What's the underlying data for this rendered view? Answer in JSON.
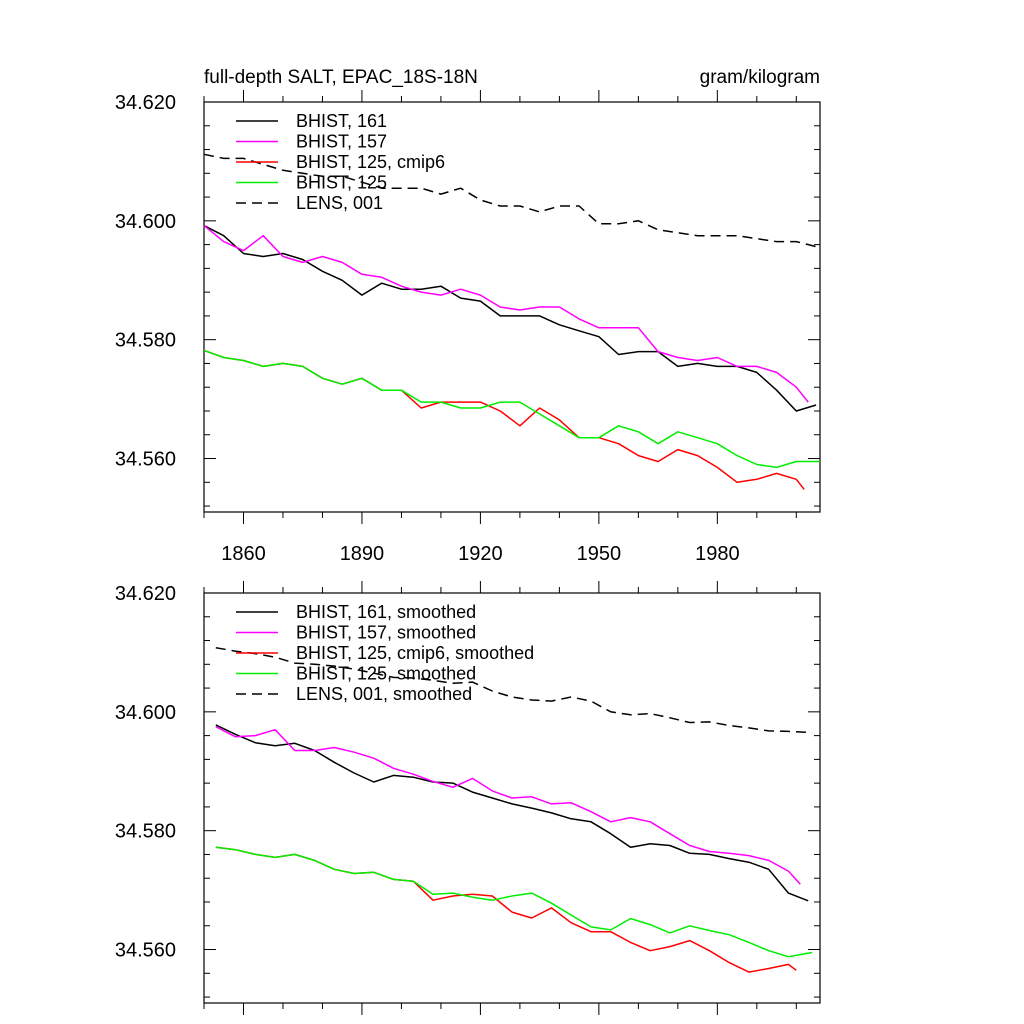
{
  "figure": {
    "title_left": "full-depth SALT, EPAC_18S-18N",
    "title_right": "gram/kilogram"
  },
  "colors": {
    "black": "#000000",
    "magenta": "#ff00ff",
    "red": "#ff0000",
    "green": "#00ee00"
  },
  "chart_data": [
    {
      "type": "line",
      "title": "full-depth SALT, EPAC_18S-18N",
      "units_label": "gram/kilogram",
      "xlim": [
        1850,
        2006
      ],
      "ylim": [
        34.551,
        34.62
      ],
      "x_ticks": [
        1860,
        1890,
        1920,
        1950,
        1980
      ],
      "x_tick_labels": [
        "1860",
        "1890",
        "1920",
        "1950",
        "1980"
      ],
      "y_ticks": [
        34.56,
        34.58,
        34.6,
        34.62
      ],
      "y_tick_labels": [
        "34.560",
        "34.580",
        "34.600",
        "34.620"
      ],
      "grid": false,
      "legend_position": "top-left",
      "series": [
        {
          "name": "BHIST, 161",
          "color": "black",
          "dash": false,
          "x": [
            1850,
            1855,
            1860,
            1865,
            1870,
            1875,
            1880,
            1885,
            1890,
            1895,
            1900,
            1905,
            1910,
            1915,
            1920,
            1925,
            1930,
            1935,
            1940,
            1945,
            1950,
            1955,
            1960,
            1965,
            1970,
            1975,
            1980,
            1985,
            1990,
            1995,
            2000,
            2005
          ],
          "y": [
            34.5992,
            34.5975,
            34.5945,
            34.594,
            34.5945,
            34.5935,
            34.5915,
            34.59,
            34.5875,
            34.5895,
            34.5885,
            34.5885,
            34.589,
            34.587,
            34.5865,
            34.584,
            34.584,
            34.584,
            34.5825,
            34.5815,
            34.5805,
            34.5775,
            34.578,
            34.578,
            34.5755,
            34.576,
            34.5755,
            34.5755,
            34.5745,
            34.5715,
            34.568,
            34.569
          ]
        },
        {
          "name": "BHIST, 157",
          "color": "magenta",
          "dash": false,
          "x": [
            1850,
            1855,
            1860,
            1865,
            1870,
            1875,
            1880,
            1885,
            1890,
            1895,
            1900,
            1905,
            1910,
            1915,
            1920,
            1925,
            1930,
            1935,
            1940,
            1945,
            1950,
            1955,
            1960,
            1965,
            1970,
            1975,
            1980,
            1985,
            1990,
            1995,
            2000,
            2003
          ],
          "y": [
            34.5992,
            34.5965,
            34.595,
            34.5975,
            34.594,
            34.593,
            34.594,
            34.593,
            34.591,
            34.5905,
            34.589,
            34.588,
            34.5875,
            34.5885,
            34.5875,
            34.5855,
            34.585,
            34.5855,
            34.5855,
            34.5835,
            34.582,
            34.582,
            34.582,
            34.578,
            34.577,
            34.5765,
            34.577,
            34.5755,
            34.5755,
            34.5745,
            34.572,
            34.5695
          ]
        },
        {
          "name": "BHIST, 125, cmip6",
          "color": "red",
          "dash": false,
          "x": [
            1850,
            1855,
            1860,
            1865,
            1870,
            1875,
            1880,
            1885,
            1890,
            1895,
            1900,
            1905,
            1910,
            1915,
            1920,
            1925,
            1930,
            1935,
            1940,
            1945,
            1950,
            1955,
            1960,
            1965,
            1970,
            1975,
            1980,
            1985,
            1990,
            1995,
            2000,
            2002
          ],
          "y": [
            34.5782,
            34.577,
            34.5765,
            34.5755,
            34.576,
            34.5755,
            34.5735,
            34.5725,
            34.5735,
            34.5715,
            34.5715,
            34.5685,
            34.5695,
            34.5695,
            34.5695,
            34.568,
            34.5655,
            34.5685,
            34.5665,
            34.5635,
            34.5635,
            34.5625,
            34.5605,
            34.5595,
            34.5615,
            34.5605,
            34.5585,
            34.556,
            34.5565,
            34.5575,
            34.5565,
            34.5548
          ]
        },
        {
          "name": "BHIST, 125",
          "color": "green",
          "dash": false,
          "x": [
            1850,
            1855,
            1860,
            1865,
            1870,
            1875,
            1880,
            1885,
            1890,
            1895,
            1900,
            1905,
            1910,
            1915,
            1920,
            1925,
            1930,
            1935,
            1940,
            1945,
            1950,
            1955,
            1960,
            1965,
            1970,
            1975,
            1980,
            1985,
            1990,
            1995,
            2000,
            2006
          ],
          "y": [
            34.5782,
            34.577,
            34.5765,
            34.5755,
            34.576,
            34.5755,
            34.5735,
            34.5725,
            34.5735,
            34.5715,
            34.5715,
            34.5695,
            34.5695,
            34.5685,
            34.5685,
            34.5695,
            34.5695,
            34.5675,
            34.5655,
            34.5635,
            34.5635,
            34.5655,
            34.5645,
            34.5625,
            34.5645,
            34.5635,
            34.5625,
            34.5605,
            34.559,
            34.5585,
            34.5595,
            34.5595
          ]
        },
        {
          "name": "LENS, 001",
          "color": "black",
          "dash": true,
          "x": [
            1850,
            1855,
            1860,
            1865,
            1870,
            1875,
            1880,
            1885,
            1890,
            1895,
            1900,
            1905,
            1910,
            1915,
            1920,
            1925,
            1930,
            1935,
            1940,
            1945,
            1950,
            1955,
            1960,
            1965,
            1970,
            1975,
            1980,
            1985,
            1990,
            1995,
            2000,
            2006
          ],
          "y": [
            34.6112,
            34.6105,
            34.6105,
            34.6095,
            34.6085,
            34.608,
            34.6075,
            34.6075,
            34.6065,
            34.6055,
            34.6055,
            34.6055,
            34.6045,
            34.6055,
            34.6035,
            34.6025,
            34.6025,
            34.6015,
            34.6025,
            34.6025,
            34.5995,
            34.5995,
            34.6,
            34.5985,
            34.598,
            34.5975,
            34.5975,
            34.5975,
            34.597,
            34.5965,
            34.5965,
            34.5955
          ]
        }
      ]
    },
    {
      "type": "line",
      "xlim": [
        1850,
        2006
      ],
      "ylim": [
        34.551,
        34.62
      ],
      "x_ticks": [
        1860,
        1890,
        1920,
        1950,
        1980
      ],
      "y_ticks": [
        34.56,
        34.58,
        34.6,
        34.62
      ],
      "y_tick_labels": [
        "34.560",
        "34.580",
        "34.600",
        "34.620"
      ],
      "grid": false,
      "legend_position": "top-left",
      "series": [
        {
          "name": "BHIST, 161, smoothed",
          "color": "black",
          "dash": false,
          "x": [
            1853,
            1858,
            1863,
            1868,
            1873,
            1878,
            1883,
            1888,
            1893,
            1898,
            1903,
            1908,
            1913,
            1918,
            1923,
            1928,
            1933,
            1938,
            1943,
            1948,
            1953,
            1958,
            1963,
            1968,
            1973,
            1978,
            1983,
            1988,
            1993,
            1998,
            2003
          ],
          "y": [
            34.5978,
            34.5962,
            34.5948,
            34.5943,
            34.5947,
            34.5935,
            34.5915,
            34.5897,
            34.5882,
            34.5893,
            34.589,
            34.5882,
            34.588,
            34.5865,
            34.5855,
            34.5845,
            34.5838,
            34.583,
            34.582,
            34.5815,
            34.5795,
            34.5772,
            34.5778,
            34.5775,
            34.5762,
            34.576,
            34.5753,
            34.5747,
            34.5735,
            34.5695,
            34.5682
          ]
        },
        {
          "name": "BHIST, 157, smoothed",
          "color": "magenta",
          "dash": false,
          "x": [
            1853,
            1858,
            1863,
            1868,
            1873,
            1878,
            1883,
            1888,
            1893,
            1898,
            1903,
            1908,
            1913,
            1918,
            1923,
            1928,
            1933,
            1938,
            1943,
            1948,
            1953,
            1958,
            1963,
            1968,
            1973,
            1978,
            1983,
            1988,
            1993,
            1998,
            2001
          ],
          "y": [
            34.5975,
            34.5958,
            34.596,
            34.597,
            34.5935,
            34.5935,
            34.594,
            34.5932,
            34.5922,
            34.5905,
            34.5895,
            34.5883,
            34.5873,
            34.5888,
            34.5867,
            34.5855,
            34.5857,
            34.5845,
            34.5847,
            34.5832,
            34.5815,
            34.5822,
            34.5815,
            34.5795,
            34.5775,
            34.5765,
            34.5762,
            34.5758,
            34.575,
            34.5732,
            34.571
          ]
        },
        {
          "name": "BHIST, 125, cmip6, smoothed",
          "color": "red",
          "dash": false,
          "x": [
            1853,
            1858,
            1863,
            1868,
            1873,
            1878,
            1883,
            1888,
            1893,
            1898,
            1903,
            1908,
            1913,
            1918,
            1923,
            1928,
            1933,
            1938,
            1943,
            1948,
            1953,
            1958,
            1963,
            1968,
            1973,
            1978,
            1983,
            1988,
            1993,
            1998,
            2000
          ],
          "y": [
            34.5772,
            34.5768,
            34.576,
            34.5755,
            34.576,
            34.575,
            34.5735,
            34.5728,
            34.573,
            34.5718,
            34.5715,
            34.5683,
            34.569,
            34.5693,
            34.569,
            34.5663,
            34.5653,
            34.567,
            34.5645,
            34.563,
            34.563,
            34.5612,
            34.5598,
            34.5605,
            34.5615,
            34.5598,
            34.5578,
            34.5562,
            34.5568,
            34.5575,
            34.5565
          ]
        },
        {
          "name": "BHIST, 125, smoothed",
          "color": "green",
          "dash": false,
          "x": [
            1853,
            1858,
            1863,
            1868,
            1873,
            1878,
            1883,
            1888,
            1893,
            1898,
            1903,
            1908,
            1913,
            1918,
            1923,
            1928,
            1933,
            1938,
            1943,
            1948,
            1953,
            1958,
            1963,
            1968,
            1973,
            1978,
            1983,
            1988,
            1993,
            1998,
            2004
          ],
          "y": [
            34.5772,
            34.5768,
            34.576,
            34.5755,
            34.576,
            34.575,
            34.5735,
            34.5728,
            34.573,
            34.5718,
            34.5715,
            34.5693,
            34.5695,
            34.5688,
            34.5683,
            34.569,
            34.5695,
            34.5678,
            34.5658,
            34.5638,
            34.5633,
            34.5652,
            34.5642,
            34.5628,
            34.564,
            34.5632,
            34.5625,
            34.5612,
            34.5598,
            34.5588,
            34.5595
          ]
        },
        {
          "name": "LENS, 001, smoothed",
          "color": "black",
          "dash": true,
          "x": [
            1853,
            1858,
            1863,
            1868,
            1873,
            1878,
            1883,
            1888,
            1893,
            1898,
            1903,
            1908,
            1913,
            1918,
            1923,
            1928,
            1933,
            1938,
            1943,
            1948,
            1953,
            1958,
            1963,
            1968,
            1973,
            1978,
            1983,
            1988,
            1993,
            1998,
            2004
          ],
          "y": [
            34.6108,
            34.6102,
            34.6098,
            34.6092,
            34.6082,
            34.608,
            34.6077,
            34.6072,
            34.6065,
            34.6058,
            34.6057,
            34.6053,
            34.6048,
            34.605,
            34.6035,
            34.6025,
            34.602,
            34.6018,
            34.6025,
            34.6018,
            34.6,
            34.5995,
            34.5997,
            34.599,
            34.5982,
            34.5983,
            34.5977,
            34.5973,
            34.5968,
            34.5967,
            34.5965
          ]
        }
      ]
    }
  ]
}
